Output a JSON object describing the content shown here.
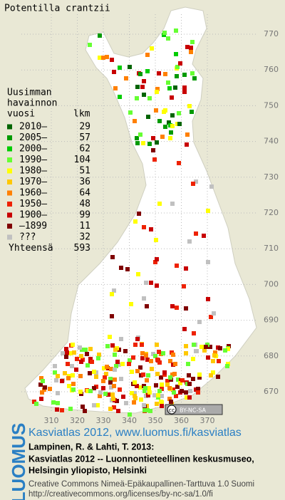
{
  "title": "Potentilla crantzii",
  "legend": {
    "heading": [
      "Uusimman",
      "havainnon",
      "vuosi"
    ],
    "count_header": "lkm",
    "items": [
      {
        "label": "2010–",
        "count": 29,
        "color": "#006400"
      },
      {
        "label": "2005–",
        "count": 57,
        "color": "#009a00"
      },
      {
        "label": "2000–",
        "count": 62,
        "color": "#00cc00"
      },
      {
        "label": "1990–",
        "count": 104,
        "color": "#66ff33"
      },
      {
        "label": "1980–",
        "count": 51,
        "color": "#ffff00"
      },
      {
        "label": "1970–",
        "count": 36,
        "color": "#ffc800"
      },
      {
        "label": "1960–",
        "count": 64,
        "color": "#ff8000"
      },
      {
        "label": "1950–",
        "count": 48,
        "color": "#ee2200"
      },
      {
        "label": "1900–",
        "count": 99,
        "color": "#c80000"
      },
      {
        "label": "–1899",
        "count": 11,
        "color": "#800000"
      },
      {
        "label": "???",
        "count": 32,
        "color": "#c0c0c0"
      }
    ],
    "total_label": "Yhteensä",
    "total": 593
  },
  "grid": {
    "x_labels": [
      310,
      320,
      330,
      340,
      350,
      360,
      370
    ],
    "y_labels": [
      770,
      760,
      750,
      740,
      730,
      720,
      710,
      700,
      690,
      680,
      670
    ]
  },
  "badge": {
    "cc": "cc",
    "license": "BY-NC-SA"
  },
  "footer": {
    "logo": "LUOMUS",
    "headline": "Kasviatlas 2012, www.luomus.fi/kasviatlas",
    "citation": [
      "Lampinen, R. & Lahti, T. 2013:",
      "Kasviatlas 2012 -- Luonnontieteellinen keskusmuseo,",
      "Helsingin yliopisto, Helsinki"
    ],
    "license": [
      "Creative Commons Nimeä-Epäkaupallinen-Tarttuva 1.0 Suomi",
      "http://creativecommons.org/licenses/by-nc-sa/1.0/fi"
    ]
  }
}
